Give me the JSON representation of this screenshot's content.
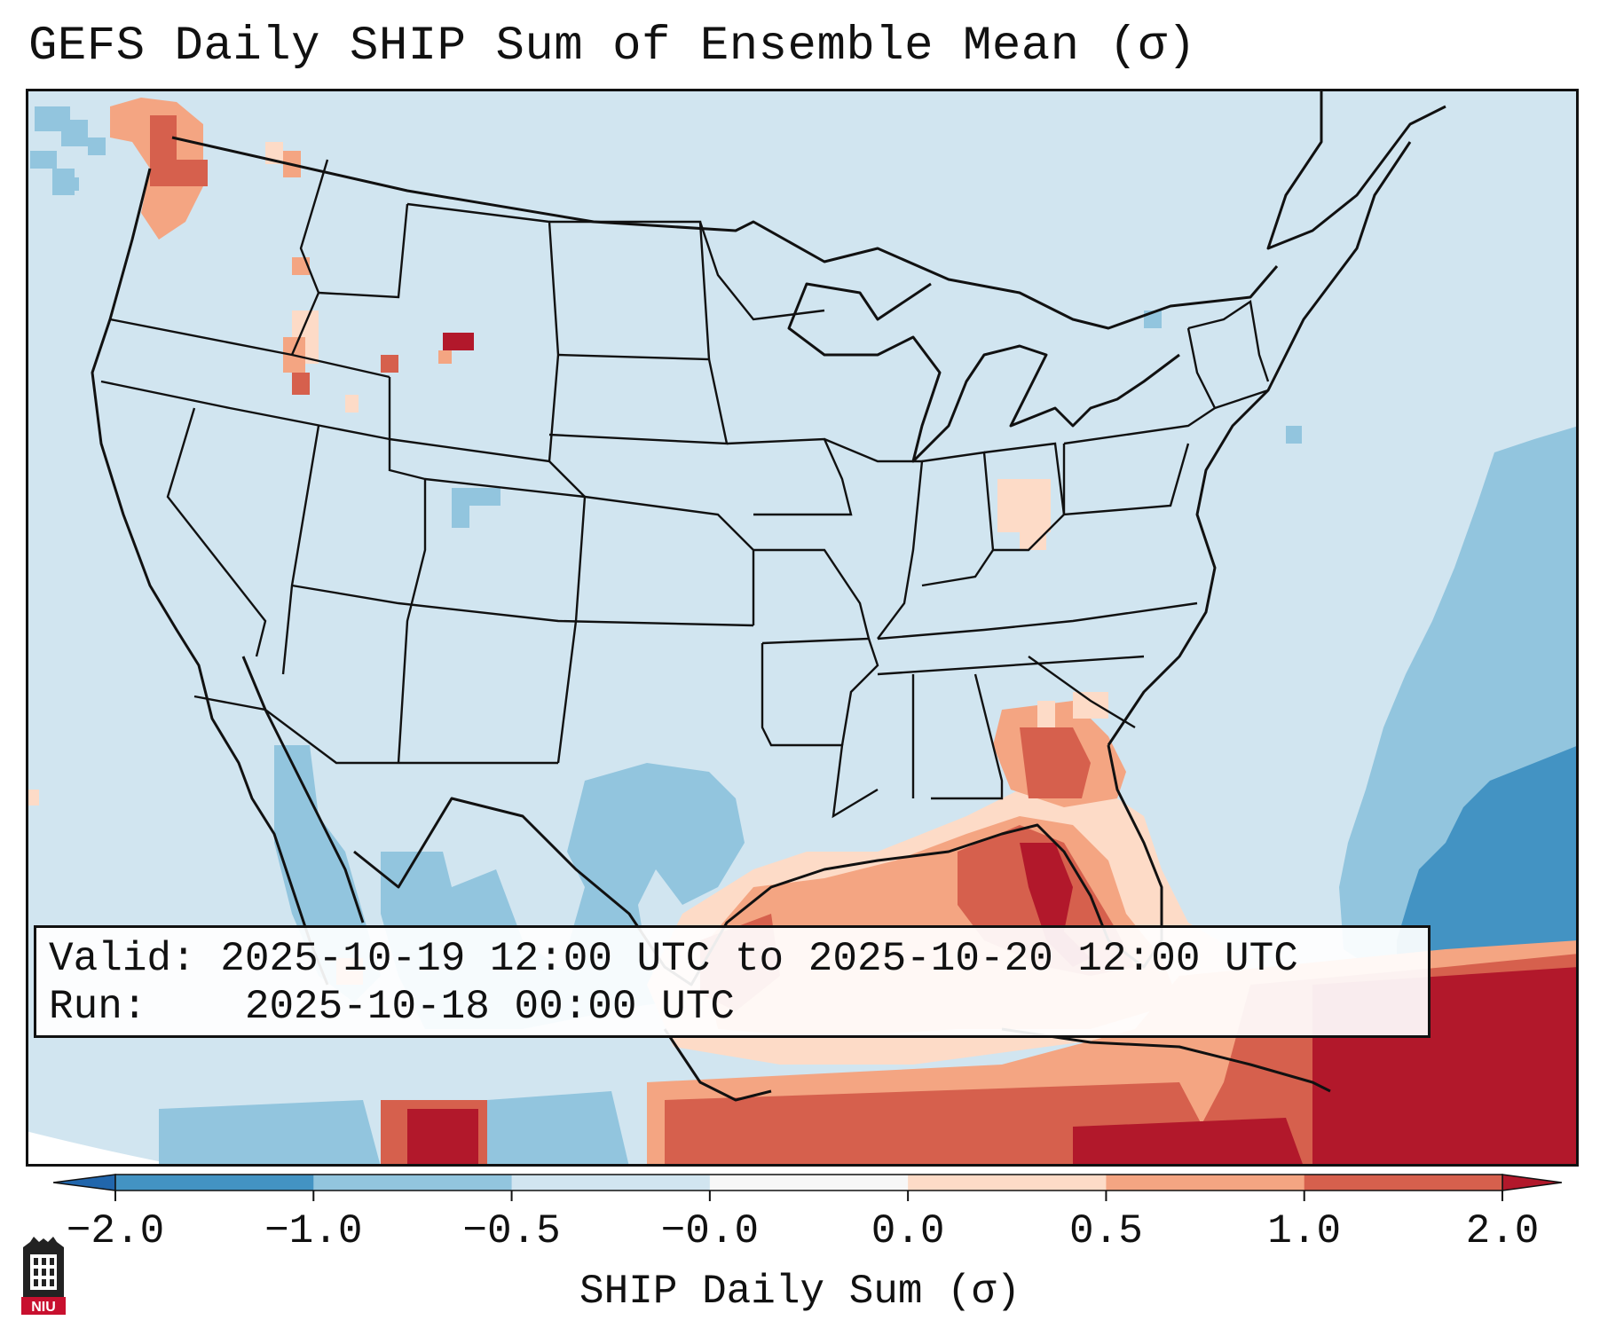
{
  "title": "GEFS Daily SHIP Sum of Ensemble Mean (σ)",
  "info": {
    "valid_label": "Valid:",
    "valid_value": "2025-10-19 12:00 UTC to 2025-10-20 12:00 UTC",
    "run_label": "Run:",
    "run_value": "2025-10-18 00:00 UTC"
  },
  "colorbar": {
    "label": "SHIP Daily Sum (σ)",
    "ticks": [
      "−2.0",
      "−1.0",
      "−0.5",
      "−0.0",
      "0.0",
      "0.5",
      "1.0",
      "2.0"
    ],
    "colors": [
      "#4393c3",
      "#92c5de",
      "#d1e5f0",
      "#f7f7f7",
      "#fddbc7",
      "#f4a582",
      "#d6604d"
    ],
    "extend_low_color": "#2166ac",
    "extend_high_color": "#b2182b"
  },
  "map": {
    "background_color": "#d1e5f0",
    "region": "Continental United States",
    "labels": []
  },
  "logo": {
    "text": "NIU",
    "color": "#c8102e"
  }
}
